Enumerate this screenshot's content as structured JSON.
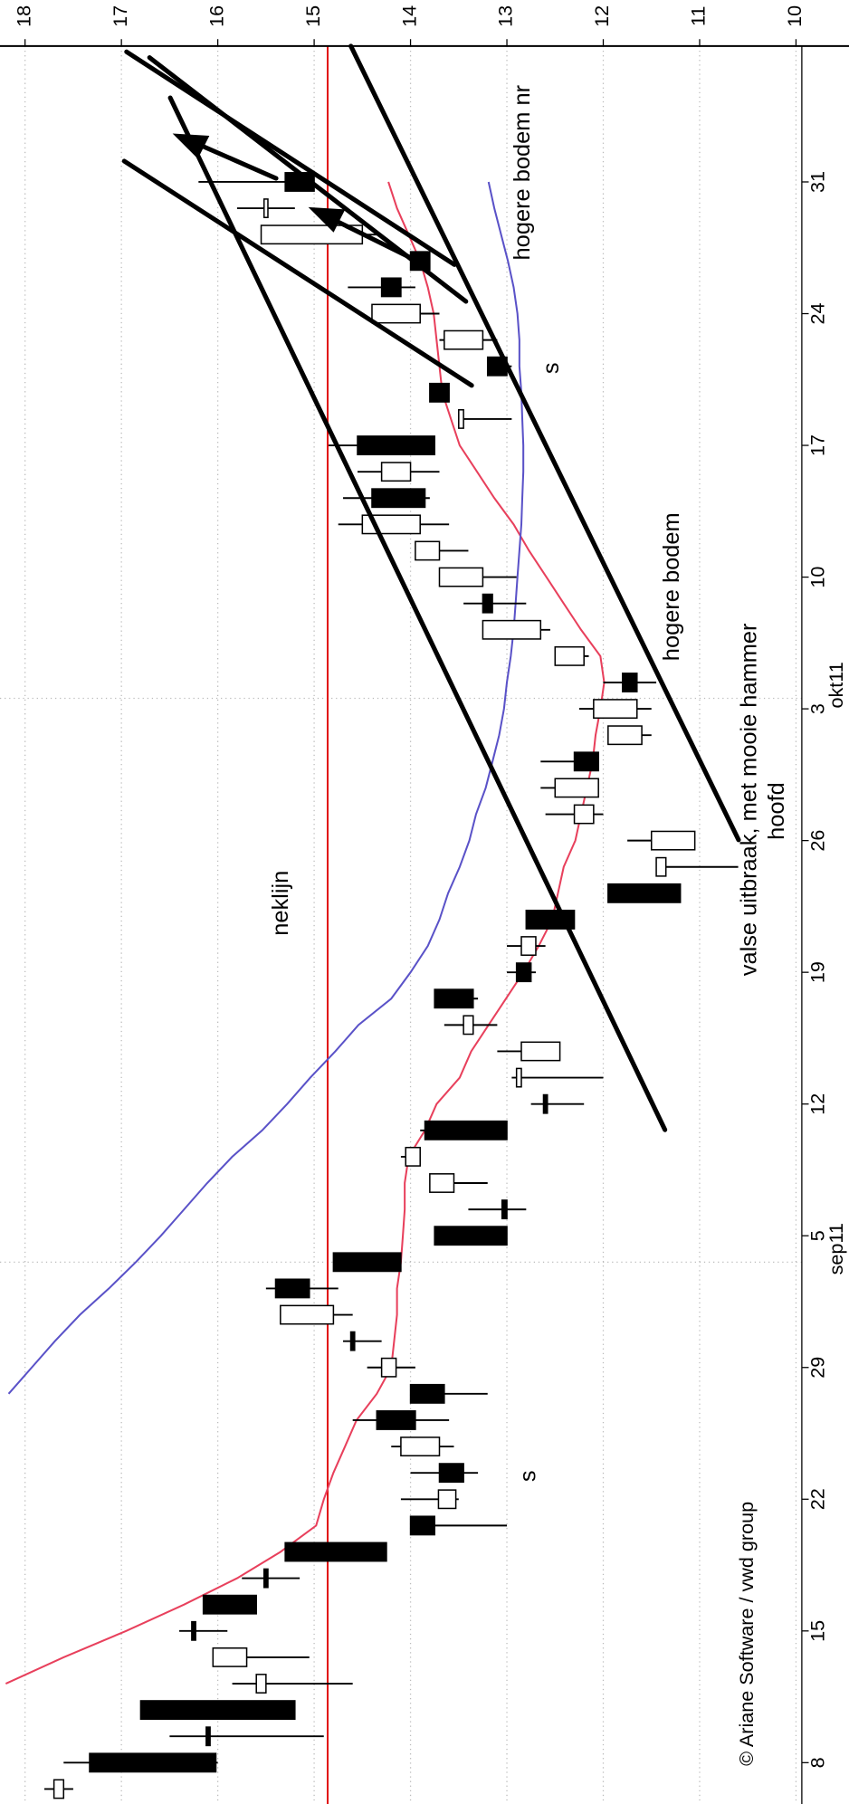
{
  "chart_data": {
    "type": "candlestick",
    "categories": [
      null,
      "8",
      null,
      null,
      null,
      null,
      "15",
      null,
      null,
      null,
      null,
      "22",
      null,
      null,
      null,
      null,
      "29",
      null,
      null,
      null,
      null,
      "5",
      null,
      null,
      null,
      null,
      "12",
      null,
      null,
      null,
      null,
      "19",
      null,
      null,
      null,
      null,
      "26",
      null,
      null,
      null,
      null,
      "3",
      null,
      null,
      null,
      null,
      "10",
      null,
      null,
      null,
      null,
      "17",
      null,
      null,
      null,
      null,
      "24",
      null,
      null,
      null,
      null,
      "31"
    ],
    "month_labels": [
      "sep11",
      "okt11"
    ],
    "open": [
      17.6,
      17.33,
      16.12,
      16.8,
      15.5,
      15.7,
      16.27,
      16.15,
      15.52,
      15.3,
      14.0,
      13.53,
      13.7,
      13.7,
      14.35,
      14.0,
      14.15,
      14.62,
      14.8,
      15.4,
      14.8,
      13.75,
      13.05,
      13.55,
      13.9,
      13.85,
      12.62,
      12.85,
      12.45,
      13.35,
      13.75,
      12.9,
      12.7,
      12.8,
      11.95,
      11.35,
      11.05,
      12.1,
      12.05,
      12.3,
      11.6,
      11.65,
      11.8,
      12.2,
      12.65,
      13.25,
      13.25,
      13.7,
      13.9,
      14.4,
      14.0,
      14.55,
      13.45,
      13.8,
      13.2,
      13.25,
      13.9,
      14.3,
      14.0,
      14.5,
      15.48,
      15.3
    ],
    "high": [
      17.8,
      17.6,
      16.5,
      16.8,
      15.85,
      16.05,
      16.4,
      16.15,
      15.75,
      15.3,
      14.0,
      14.1,
      14.0,
      14.2,
      14.6,
      14.0,
      14.45,
      14.7,
      15.35,
      15.5,
      14.8,
      13.75,
      13.4,
      13.8,
      14.1,
      13.9,
      12.75,
      12.95,
      13.1,
      13.65,
      13.75,
      13.0,
      13.0,
      12.8,
      11.95,
      11.45,
      11.75,
      12.6,
      12.65,
      12.65,
      11.95,
      12.25,
      12.0,
      12.5,
      13.25,
      13.45,
      13.7,
      13.95,
      14.75,
      14.7,
      14.55,
      14.85,
      13.5,
      13.8,
      13.2,
      13.7,
      14.4,
      14.65,
      14.0,
      15.55,
      15.8,
      16.2
    ],
    "low": [
      17.5,
      16.0,
      14.9,
      15.2,
      14.6,
      15.05,
      15.9,
      15.6,
      15.15,
      14.25,
      13.0,
      13.5,
      13.3,
      13.55,
      13.6,
      13.2,
      13.95,
      14.3,
      14.6,
      14.75,
      14.1,
      13.0,
      12.8,
      13.2,
      13.9,
      13.0,
      12.2,
      12.0,
      12.45,
      13.1,
      13.3,
      12.7,
      12.6,
      12.3,
      11.2,
      10.6,
      11.05,
      12.0,
      12.05,
      12.05,
      11.5,
      11.5,
      11.45,
      12.15,
      12.55,
      12.8,
      12.9,
      13.4,
      13.6,
      13.8,
      13.7,
      13.75,
      12.95,
      13.6,
      12.95,
      13.1,
      13.7,
      13.95,
      13.8,
      14.35,
      15.2,
      15.0
    ],
    "close": [
      17.7,
      16.02,
      16.08,
      15.2,
      15.6,
      16.05,
      16.23,
      15.6,
      15.48,
      14.25,
      13.75,
      13.71,
      13.45,
      14.1,
      13.95,
      13.65,
      14.3,
      14.58,
      15.35,
      15.05,
      14.1,
      13.0,
      13.0,
      13.8,
      14.05,
      13.0,
      12.58,
      12.9,
      12.85,
      13.45,
      13.35,
      12.75,
      12.85,
      12.3,
      11.2,
      11.45,
      11.5,
      12.3,
      12.5,
      12.05,
      11.95,
      12.1,
      11.65,
      12.5,
      13.25,
      13.15,
      13.7,
      13.95,
      14.5,
      13.85,
      14.3,
      13.75,
      13.5,
      13.6,
      13.0,
      13.65,
      14.4,
      14.1,
      13.8,
      15.55,
      15.52,
      15.0
    ],
    "up_color": "#ffffff",
    "down_color": "#000000",
    "moving_averages": [
      {
        "color": "#e8405c",
        "values": [
          null,
          null,
          null,
          null,
          18.2,
          17.6,
          16.95,
          16.35,
          15.8,
          15.35,
          14.98,
          14.9,
          14.8,
          14.68,
          14.56,
          14.35,
          14.2,
          14.17,
          14.14,
          14.14,
          14.1,
          14.08,
          14.06,
          14.06,
          14.02,
          13.85,
          13.73,
          13.49,
          13.37,
          13.19,
          13.01,
          12.83,
          12.67,
          12.53,
          12.47,
          12.41,
          12.29,
          12.23,
          12.17,
          12.11,
          12.08,
          12.03,
          11.99,
          12.03,
          12.23,
          12.41,
          12.59,
          12.77,
          12.93,
          13.13,
          13.31,
          13.49,
          13.58,
          13.67,
          13.7,
          13.73,
          13.76,
          13.82,
          13.9,
          14.02,
          14.14,
          14.23
        ]
      },
      {
        "color": "#5a52c8",
        "values": [
          null,
          null,
          null,
          null,
          null,
          null,
          null,
          null,
          null,
          null,
          null,
          null,
          null,
          null,
          null,
          18.17,
          17.93,
          17.69,
          17.43,
          17.13,
          16.85,
          16.59,
          16.35,
          16.11,
          15.85,
          15.54,
          15.28,
          15.04,
          14.78,
          14.54,
          14.2,
          14.0,
          13.82,
          13.7,
          13.61,
          13.49,
          13.39,
          13.32,
          13.22,
          13.15,
          13.08,
          13.03,
          13.0,
          12.96,
          12.93,
          12.91,
          12.89,
          12.87,
          12.85,
          12.84,
          12.83,
          12.83,
          12.84,
          12.85,
          12.87,
          12.87,
          12.89,
          12.93,
          12.99,
          13.06,
          13.13,
          13.19
        ]
      }
    ],
    "neckline": {
      "value": 14.86,
      "label": "neklijn",
      "color": "#e00000"
    },
    "ylim": [
      9.45,
      18.26
    ],
    "yticks": [
      10,
      11,
      12,
      13,
      14,
      15,
      16,
      17,
      18
    ],
    "grid": true,
    "annotations": [
      "hogere bodem nr",
      "s",
      "hogere bodem",
      "valse uitbraak, met mooie hammer",
      "hoofd",
      "s"
    ],
    "copyright": "© Ariane Software / vwd group"
  }
}
